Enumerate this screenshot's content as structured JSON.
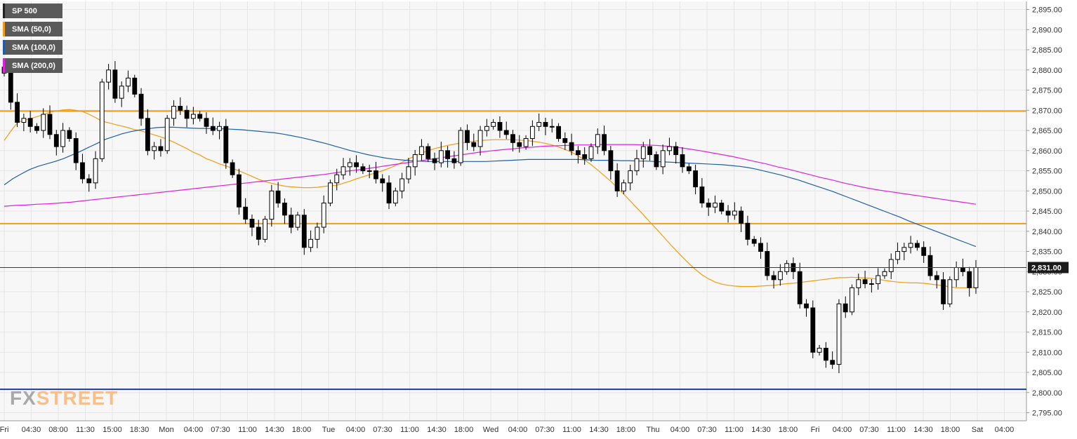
{
  "legend": {
    "items": [
      {
        "label": "SP 500",
        "color": "#222222"
      },
      {
        "label": "SMA (50,0)",
        "color": "#f39c12"
      },
      {
        "label": "SMA (100,0)",
        "color": "#1f5fa8"
      },
      {
        "label": "SMA (200,0)",
        "color": "#e020e0"
      }
    ]
  },
  "watermark": {
    "part1": "FX",
    "part2": "STREET"
  },
  "colors": {
    "background": "#f7f7f7",
    "grid": "#e6e6e6",
    "candle_up": "#ffffff",
    "candle_down": "#000000",
    "candle_outline": "#000000",
    "support_resistance": "#f39c12",
    "current_price_line": "#1f3a6e",
    "base_line": "#1f3a9e",
    "price_label_bg": "#1b1b1b"
  },
  "chart_data": {
    "type": "candlestick",
    "title": "SP 500",
    "ylim": [
      2793,
      2897
    ],
    "y_ticks": [
      "2,895.00",
      "2,890.00",
      "2,885.00",
      "2,880.00",
      "2,875.00",
      "2,870.00",
      "2,865.00",
      "2,860.00",
      "2,855.00",
      "2,850.00",
      "2,845.00",
      "2,840.00",
      "2,835.00",
      "2,830.00",
      "2,825.00",
      "2,820.00",
      "2,815.00",
      "2,810.00",
      "2,805.00",
      "2,800.00",
      "2,795.00"
    ],
    "x_ticks": [
      "Fri",
      "04:30",
      "08:00",
      "11:30",
      "15:00",
      "18:30",
      "Mon",
      "04:00",
      "07:30",
      "11:00",
      "14:30",
      "18:00",
      "Tue",
      "04:00",
      "07:30",
      "11:00",
      "14:30",
      "18:00",
      "Wed",
      "04:00",
      "07:30",
      "11:00",
      "14:30",
      "18:00",
      "Thu",
      "04:00",
      "07:30",
      "11:00",
      "14:30",
      "18:00",
      "Fri",
      "04:00",
      "07:30",
      "11:00",
      "14:30",
      "18:00",
      "Sat",
      "04:00"
    ],
    "current_price": 2831,
    "current_price_label": "2,831.00",
    "horizontal_levels": [
      {
        "value": 2869.8,
        "kind": "resistance"
      },
      {
        "value": 2841.9,
        "kind": "resistance"
      },
      {
        "value": 2800.8,
        "kind": "support"
      }
    ],
    "candle_count": 150,
    "close": [
      2879.2,
      2872.0,
      2867.0,
      2868.0,
      2866.0,
      2865.0,
      2869.0,
      2864.0,
      2861.0,
      2865.0,
      2863.0,
      2857.0,
      2853.0,
      2852.0,
      2858.0,
      2877.0,
      2880.0,
      2873.0,
      2876.0,
      2878.0,
      2874.0,
      2868.0,
      2860.0,
      2861.0,
      2860.0,
      2868.0,
      2871.0,
      2870.0,
      2868.0,
      2869.0,
      2868.0,
      2866.0,
      2865.0,
      2866.0,
      2857.0,
      2854.0,
      2846.0,
      2843.0,
      2841.0,
      2838.0,
      2843.0,
      2850.0,
      2847.0,
      2844.0,
      2841.0,
      2844.0,
      2836.0,
      2838.0,
      2841.0,
      2847.0,
      2852.0,
      2854.0,
      2856.0,
      2857.0,
      2856.0,
      2855.0,
      2855.0,
      2853.0,
      2852.0,
      2847.0,
      2850.0,
      2853.0,
      2856.0,
      2859.0,
      2861.0,
      2858.0,
      2857.0,
      2860.0,
      2858.0,
      2857.0,
      2865.0,
      2862.0,
      2861.0,
      2865.0,
      2866.0,
      2867.0,
      2865.0,
      2864.0,
      2862.0,
      2861.0,
      2863.0,
      2866.0,
      2867.0,
      2866.0,
      2866.0,
      2863.0,
      2862.0,
      2860.0,
      2859.0,
      2858.0,
      2861.0,
      2864.0,
      2860.0,
      2855.0,
      2850.0,
      2852.0,
      2855.0,
      2858.0,
      2861.0,
      2859.0,
      2856.0,
      2860.0,
      2861.0,
      2859.0,
      2856.0,
      2855.0,
      2851.0,
      2847.0,
      2846.0,
      2847.0,
      2845.0,
      2844.0,
      2845.0,
      2842.0,
      2838.0,
      2837.0,
      2835.0,
      2829.0,
      2828.0,
      2830.0,
      2832.0,
      2830.0,
      2822.0,
      2821.0,
      2810.0,
      2811.0,
      2808.0,
      2807.0,
      2822.0,
      2820.0,
      2826.0,
      2828.0,
      2827.0,
      2827.0,
      2829.0,
      2830.0,
      2833.0,
      2835.0,
      2836.0,
      2837.0,
      2836.0,
      2834.0,
      2829.0,
      2828.0,
      2822.0,
      2828.0,
      2831.0,
      2830.0,
      2826.0,
      2831.0
    ],
    "series": [
      {
        "name": "SMA (50,0)",
        "values": [
          2862.5,
          2864.8,
          2866.9,
          2867.5,
          2867.9,
          2868.4,
          2868.9,
          2869.5,
          2869.8,
          2870.1,
          2870.2,
          2870.0,
          2869.7,
          2869.0,
          2868.2,
          2867.3,
          2866.9,
          2866.5,
          2866.1,
          2865.7,
          2865.2,
          2864.9,
          2864.4,
          2863.9,
          2863.4,
          2862.8,
          2862.1,
          2861.3,
          2860.5,
          2859.6,
          2858.9,
          2858.0,
          2857.4,
          2856.7,
          2856.2,
          2855.6,
          2855.0,
          2854.3,
          2853.6,
          2852.9,
          2852.3,
          2851.9,
          2851.5,
          2851.2,
          2851.0,
          2850.9,
          2850.8,
          2850.8,
          2850.9,
          2851.1,
          2851.3,
          2851.4,
          2851.9,
          2852.4,
          2853.0,
          2853.5,
          2854.0,
          2854.5,
          2855.0,
          2855.6,
          2856.3,
          2857.1,
          2857.9,
          2858.7,
          2859.4,
          2860.0,
          2860.5,
          2860.9,
          2861.3,
          2861.6,
          2861.9,
          2862.1,
          2862.3,
          2862.5,
          2862.6,
          2862.7,
          2862.7,
          2862.7,
          2862.7,
          2862.6,
          2862.5,
          2862.3,
          2862.1,
          2861.8,
          2861.4,
          2860.9,
          2860.3,
          2859.6,
          2858.7,
          2857.7,
          2856.5,
          2855.2,
          2853.8,
          2852.4,
          2850.8,
          2849.2,
          2847.5,
          2845.8,
          2844.1,
          2842.3,
          2840.6,
          2838.8,
          2837.0,
          2835.3,
          2833.6,
          2832.0,
          2830.5,
          2829.2,
          2828.2,
          2827.4,
          2826.9,
          2826.6,
          2826.4,
          2826.3,
          2826.3,
          2826.3,
          2826.4,
          2826.5,
          2826.6,
          2826.8,
          2827.0,
          2827.1,
          2827.3,
          2827.5,
          2827.7,
          2827.9,
          2828.1,
          2828.3,
          2828.5,
          2828.5,
          2828.6,
          2828.5,
          2828.4,
          2828.3,
          2828.1,
          2827.8,
          2827.6,
          2827.4,
          2827.3,
          2827.2,
          2827.2,
          2827.1,
          2826.9,
          2826.7,
          2826.5,
          2826.2,
          2826.0,
          2826.0,
          2826.0,
          2826.1
        ]
      },
      {
        "name": "SMA (100,0)",
        "values": [
          2851.5,
          2853.0,
          2854.2,
          2855.3,
          2856.1,
          2856.7,
          2857.3,
          2858.0,
          2858.9,
          2859.8,
          2860.8,
          2861.8,
          2862.8,
          2863.5,
          2864.2,
          2864.7,
          2865.1,
          2865.4,
          2865.7,
          2865.8,
          2865.8,
          2865.7,
          2865.6,
          2865.5,
          2865.5,
          2865.4,
          2865.4,
          2865.3,
          2865.2,
          2865.0,
          2864.8,
          2864.6,
          2864.4,
          2864.1,
          2863.7,
          2863.3,
          2862.8,
          2862.3,
          2861.8,
          2861.2,
          2860.6,
          2860.0,
          2859.5,
          2859.0,
          2858.6,
          2858.2,
          2857.9,
          2857.7,
          2857.5,
          2857.4,
          2857.3,
          2857.3,
          2857.3,
          2857.3,
          2857.3,
          2857.3,
          2857.3,
          2857.3,
          2857.4,
          2857.5,
          2857.6,
          2857.7,
          2857.8,
          2857.8,
          2857.8,
          2857.8,
          2857.8,
          2857.8,
          2857.8,
          2857.7,
          2857.6,
          2857.6,
          2857.6,
          2857.5,
          2857.5,
          2857.4,
          2857.4,
          2857.3,
          2857.2,
          2857.1,
          2857.0,
          2856.9,
          2856.8,
          2856.7,
          2856.6,
          2856.5,
          2856.3,
          2856.1,
          2855.8,
          2855.4,
          2854.9,
          2854.4,
          2853.9,
          2853.3,
          2852.7,
          2852.0,
          2851.3,
          2850.6,
          2849.9,
          2849.1,
          2848.3,
          2847.5,
          2846.7,
          2845.9,
          2845.1,
          2844.3,
          2843.5,
          2842.6,
          2841.8,
          2841.0,
          2840.2,
          2839.4,
          2838.6,
          2837.8,
          2837.0,
          2836.2
        ]
      },
      {
        "name": "SMA (200,0)",
        "values": [
          2846.2,
          2846.4,
          2846.5,
          2846.7,
          2846.8,
          2847.0,
          2847.2,
          2847.5,
          2847.8,
          2848.1,
          2848.4,
          2848.7,
          2849.0,
          2849.3,
          2849.6,
          2849.9,
          2850.2,
          2850.5,
          2850.8,
          2851.1,
          2851.4,
          2851.7,
          2852.0,
          2852.3,
          2852.6,
          2852.9,
          2853.2,
          2853.5,
          2853.8,
          2854.1,
          2854.5,
          2854.9,
          2855.2,
          2855.6,
          2856.0,
          2856.4,
          2856.8,
          2857.2,
          2857.6,
          2858.0,
          2858.4,
          2858.8,
          2859.2,
          2859.6,
          2859.9,
          2860.2,
          2860.4,
          2860.7,
          2860.9,
          2861.1,
          2861.2,
          2861.3,
          2861.4,
          2861.4,
          2861.5,
          2861.5,
          2861.5,
          2861.5,
          2861.4,
          2861.3,
          2861.1,
          2860.8,
          2860.4,
          2860.0,
          2859.5,
          2859.0,
          2858.5,
          2857.9,
          2857.3,
          2856.7,
          2856.0,
          2855.4,
          2854.7,
          2854.0,
          2853.3,
          2852.7,
          2852.0,
          2851.4,
          2850.8,
          2850.3,
          2849.9,
          2849.5,
          2849.1,
          2848.7,
          2848.3,
          2847.9,
          2847.5,
          2847.1,
          2846.7
        ]
      }
    ]
  }
}
